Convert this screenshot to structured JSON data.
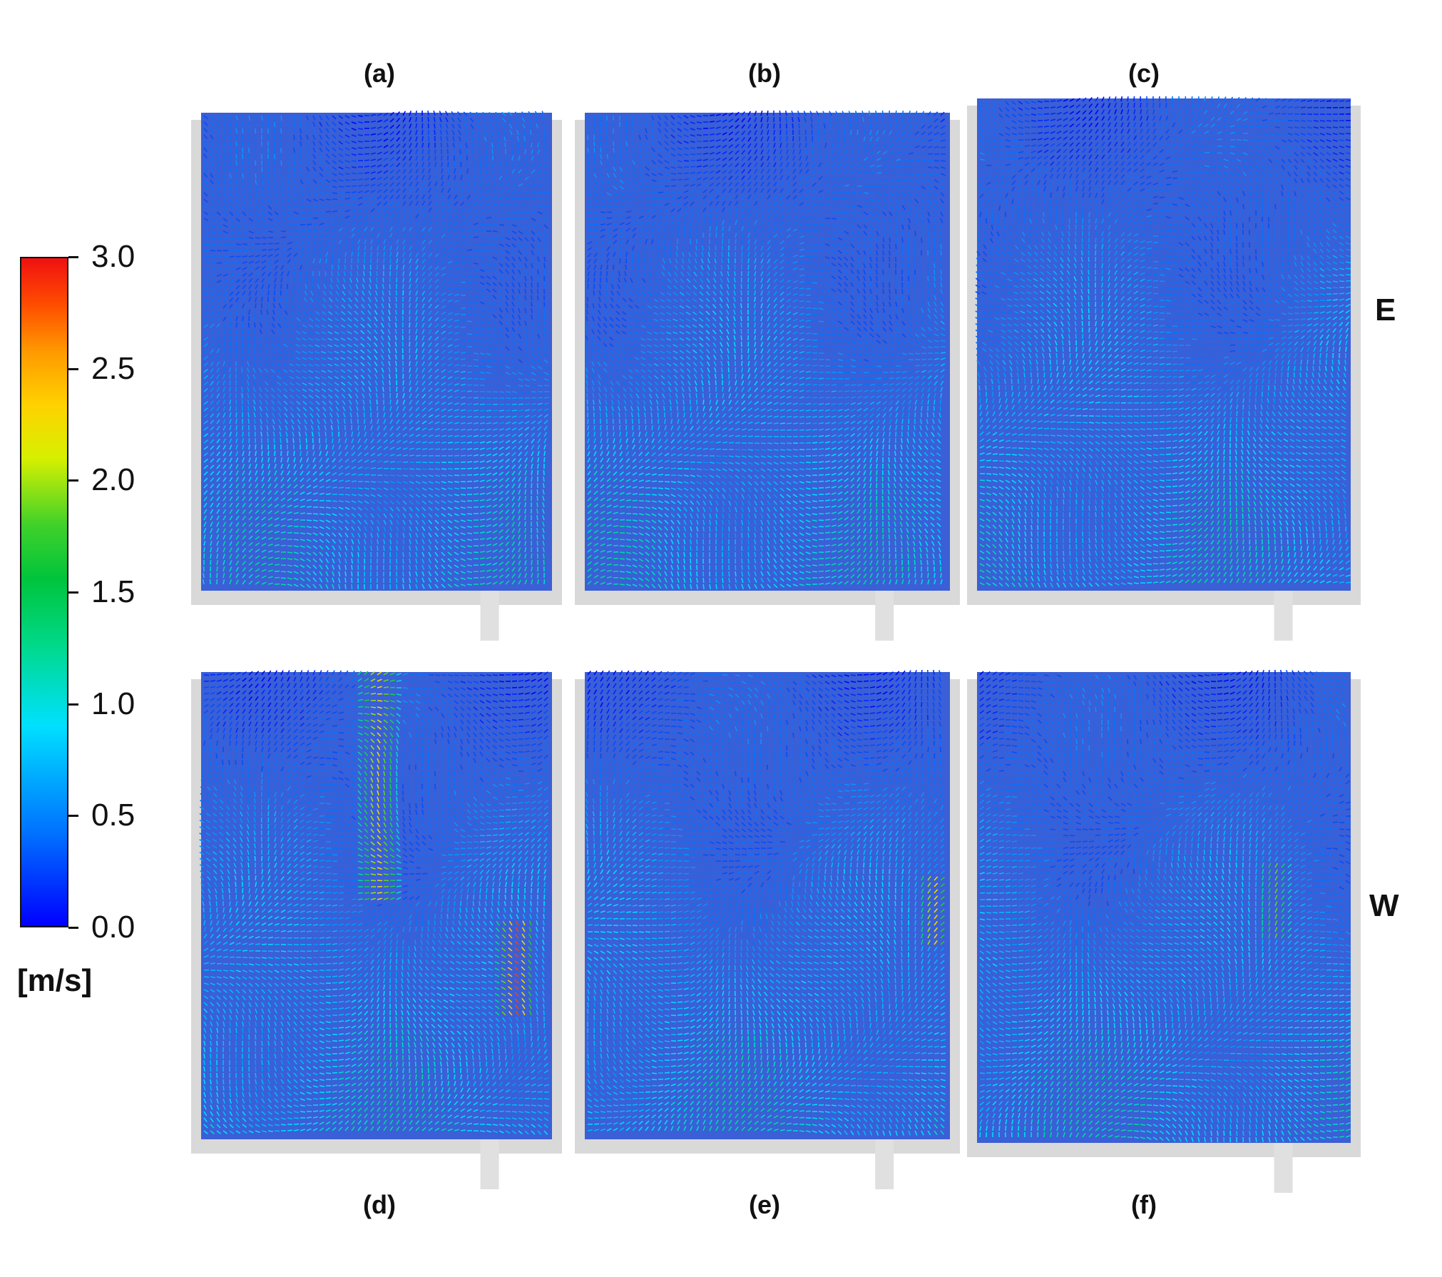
{
  "panels": [
    {
      "label": "(a)"
    },
    {
      "label": "(b)"
    },
    {
      "label": "(c)"
    },
    {
      "label": "(d)"
    },
    {
      "label": "(e)"
    },
    {
      "label": "(f)"
    }
  ],
  "rows": [
    {
      "label": "E"
    },
    {
      "label": "W"
    }
  ],
  "colorbar": {
    "ticks": [
      "3.0",
      "2.5",
      "2.0",
      "1.5",
      "1.0",
      "0.5",
      "0.0"
    ],
    "unit": "[m/s]",
    "min": 0.0,
    "max": 3.0
  }
}
